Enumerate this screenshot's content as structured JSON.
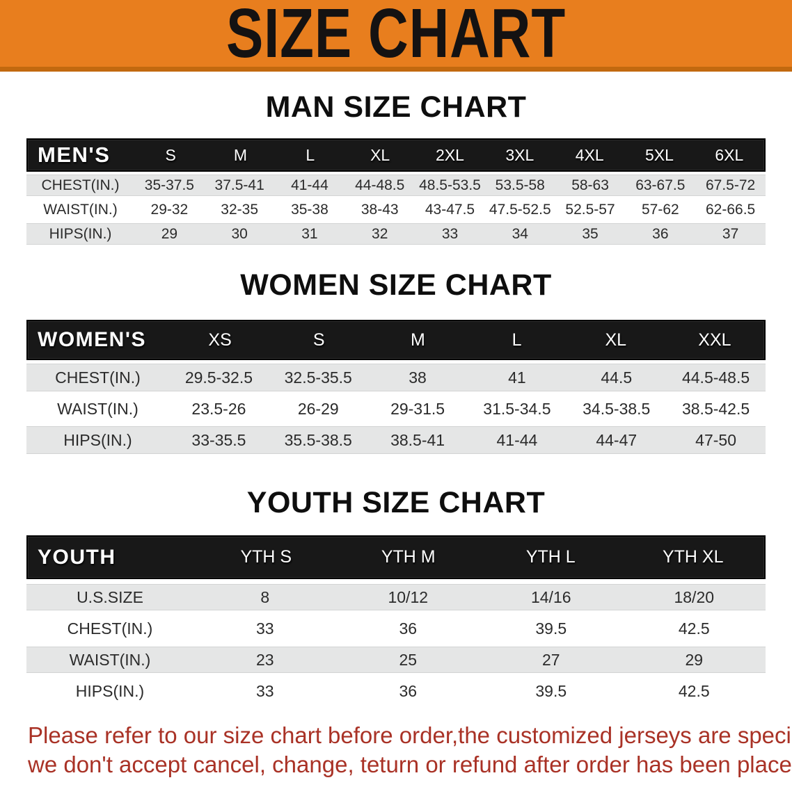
{
  "banner": {
    "title": "SIZE CHART"
  },
  "colors": {
    "banner_orange": "#e87e1e",
    "banner_border": "#c2690f",
    "header_bar_black": "#181818",
    "row_stripe_gray": "#e5e6e6",
    "cell_text": "#2b2b2b",
    "disclaimer_red": "#a93226"
  },
  "chart_data": [
    {
      "type": "table",
      "title": "MAN SIZE CHART",
      "header_label": "MEN'S",
      "columns": [
        "S",
        "M",
        "L",
        "XL",
        "2XL",
        "3XL",
        "4XL",
        "5XL",
        "6XL"
      ],
      "rows": [
        {
          "label": "CHEST(IN.)",
          "values": [
            "35-37.5",
            "37.5-41",
            "41-44",
            "44-48.5",
            "48.5-53.5",
            "53.5-58",
            "58-63",
            "63-67.5",
            "67.5-72"
          ]
        },
        {
          "label": "WAIST(IN.)",
          "values": [
            "29-32",
            "32-35",
            "35-38",
            "38-43",
            "43-47.5",
            "47.5-52.5",
            "52.5-57",
            "57-62",
            "62-66.5"
          ]
        },
        {
          "label": "HIPS(IN.)",
          "values": [
            "29",
            "30",
            "31",
            "32",
            "33",
            "34",
            "35",
            "36",
            "37"
          ]
        }
      ]
    },
    {
      "type": "table",
      "title": "WOMEN SIZE CHART",
      "header_label": "WOMEN'S",
      "columns": [
        "XS",
        "S",
        "M",
        "L",
        "XL",
        "XXL"
      ],
      "rows": [
        {
          "label": "CHEST(IN.)",
          "values": [
            "29.5-32.5",
            "32.5-35.5",
            "38",
            "41",
            "44.5",
            "44.5-48.5"
          ]
        },
        {
          "label": "WAIST(IN.)",
          "values": [
            "23.5-26",
            "26-29",
            "29-31.5",
            "31.5-34.5",
            "34.5-38.5",
            "38.5-42.5"
          ]
        },
        {
          "label": "HIPS(IN.)",
          "values": [
            "33-35.5",
            "35.5-38.5",
            "38.5-41",
            "41-44",
            "44-47",
            "47-50"
          ]
        }
      ]
    },
    {
      "type": "table",
      "title": "YOUTH SIZE CHART",
      "header_label": "YOUTH",
      "columns": [
        "YTH S",
        "YTH M",
        "YTH L",
        "YTH XL"
      ],
      "rows": [
        {
          "label": "U.S.SIZE",
          "values": [
            "8",
            "10/12",
            "14/16",
            "18/20"
          ]
        },
        {
          "label": "CHEST(IN.)",
          "values": [
            "33",
            "36",
            "39.5",
            "42.5"
          ]
        },
        {
          "label": "WAIST(IN.)",
          "values": [
            "23",
            "25",
            "27",
            "29"
          ]
        },
        {
          "label": "HIPS(IN.)",
          "values": [
            "33",
            "36",
            "39.5",
            "42.5"
          ]
        }
      ]
    }
  ],
  "disclaimer": {
    "line1": "Please refer to our size chart before order,the customized jerseys are special products,",
    "line2": "we don't accept cancel, change, teturn or refund after order has been placed!"
  }
}
